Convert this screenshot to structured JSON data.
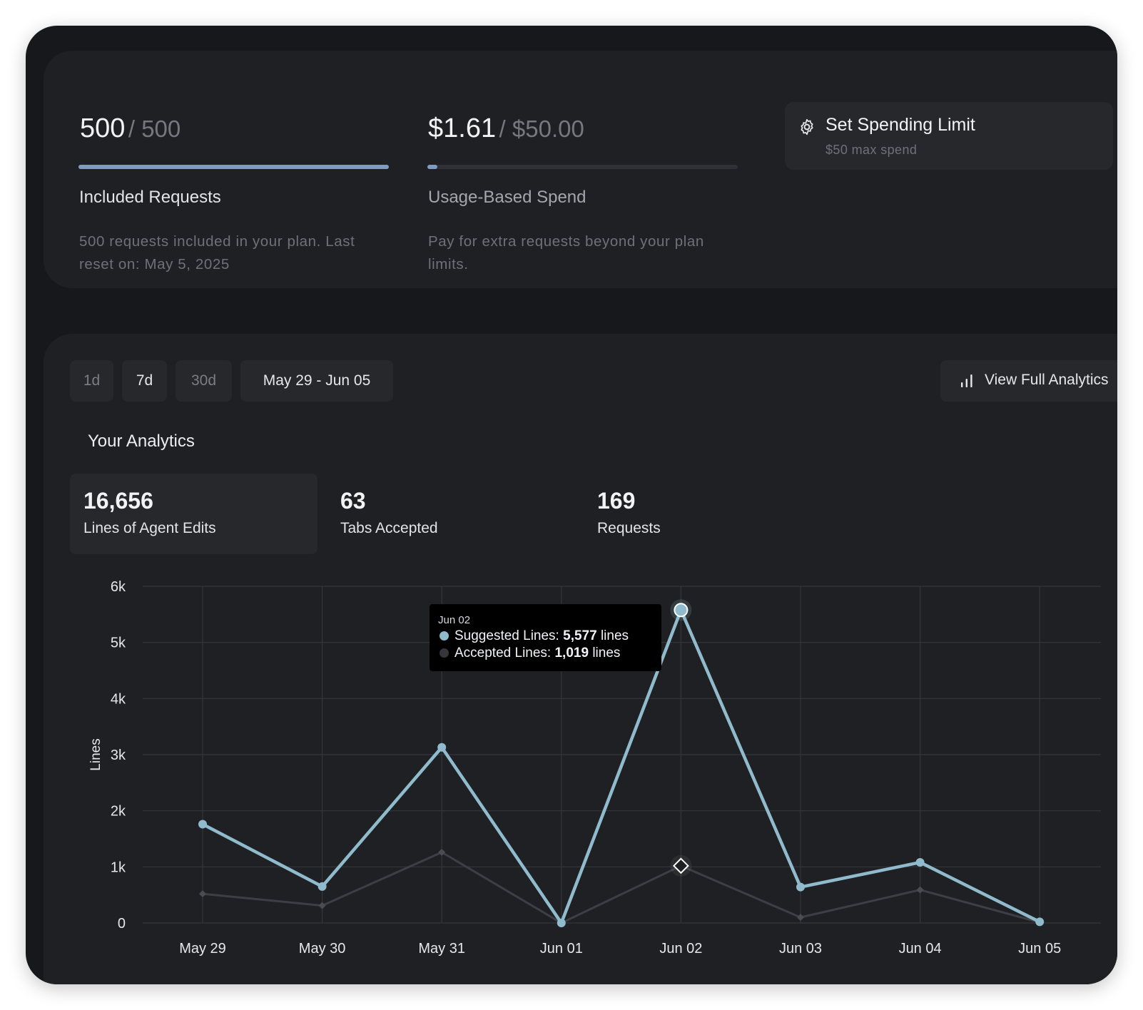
{
  "usage": {
    "included": {
      "value": "500",
      "limit": "/ 500",
      "progress": 1.0,
      "title": "Included Requests",
      "description": "500 requests included in your plan. Last reset on: May 5, 2025"
    },
    "spend": {
      "value": "$1.61",
      "limit": "/ $50.00",
      "progress": 0.032,
      "title": "Usage-Based Spend",
      "description": "Pay for extra requests beyond your plan limits."
    },
    "spending_limit": {
      "label": "Set Spending Limit",
      "sub": "$50 max spend",
      "icon": "gear-icon"
    }
  },
  "analytics": {
    "ranges": [
      "1d",
      "7d",
      "30d"
    ],
    "active_range": "7d",
    "date_range": "May 29 - Jun 05",
    "view_full": "View Full Analytics",
    "view_full_icon": "bar-chart-icon",
    "title": "Your Analytics",
    "stats": [
      {
        "value": "16,656",
        "label": "Lines of Agent Edits",
        "selected": true
      },
      {
        "value": "63",
        "label": "Tabs Accepted",
        "selected": false
      },
      {
        "value": "169",
        "label": "Requests",
        "selected": false
      }
    ],
    "tooltip": {
      "date": "Jun 02",
      "rows": [
        {
          "label": "Suggested Lines:",
          "value": "5,577",
          "unit": "lines",
          "color": "#8fbbcd"
        },
        {
          "label": "Accepted Lines:",
          "value": "1,019",
          "unit": "lines",
          "color": "#34363c"
        }
      ]
    }
  },
  "chart_data": {
    "type": "line",
    "ylabel": "Lines",
    "xlabel": "",
    "categories": [
      "May 29",
      "May 30",
      "May 31",
      "Jun 01",
      "Jun 02",
      "Jun 03",
      "Jun 04",
      "Jun 05"
    ],
    "ylim": [
      0,
      6000
    ],
    "yticks": [
      0,
      1000,
      2000,
      3000,
      4000,
      5000,
      6000
    ],
    "ytick_labels": [
      "0",
      "1k",
      "2k",
      "3k",
      "4k",
      "5k",
      "6k"
    ],
    "grid": true,
    "highlight_index": 4,
    "series": [
      {
        "name": "Suggested Lines",
        "color": "#8fbbcd",
        "values": [
          1760,
          650,
          3130,
          0,
          5577,
          640,
          1080,
          20
        ]
      },
      {
        "name": "Accepted Lines",
        "color": "#3d3f45",
        "values": [
          520,
          310,
          1260,
          0,
          1019,
          100,
          590,
          10
        ]
      }
    ]
  }
}
